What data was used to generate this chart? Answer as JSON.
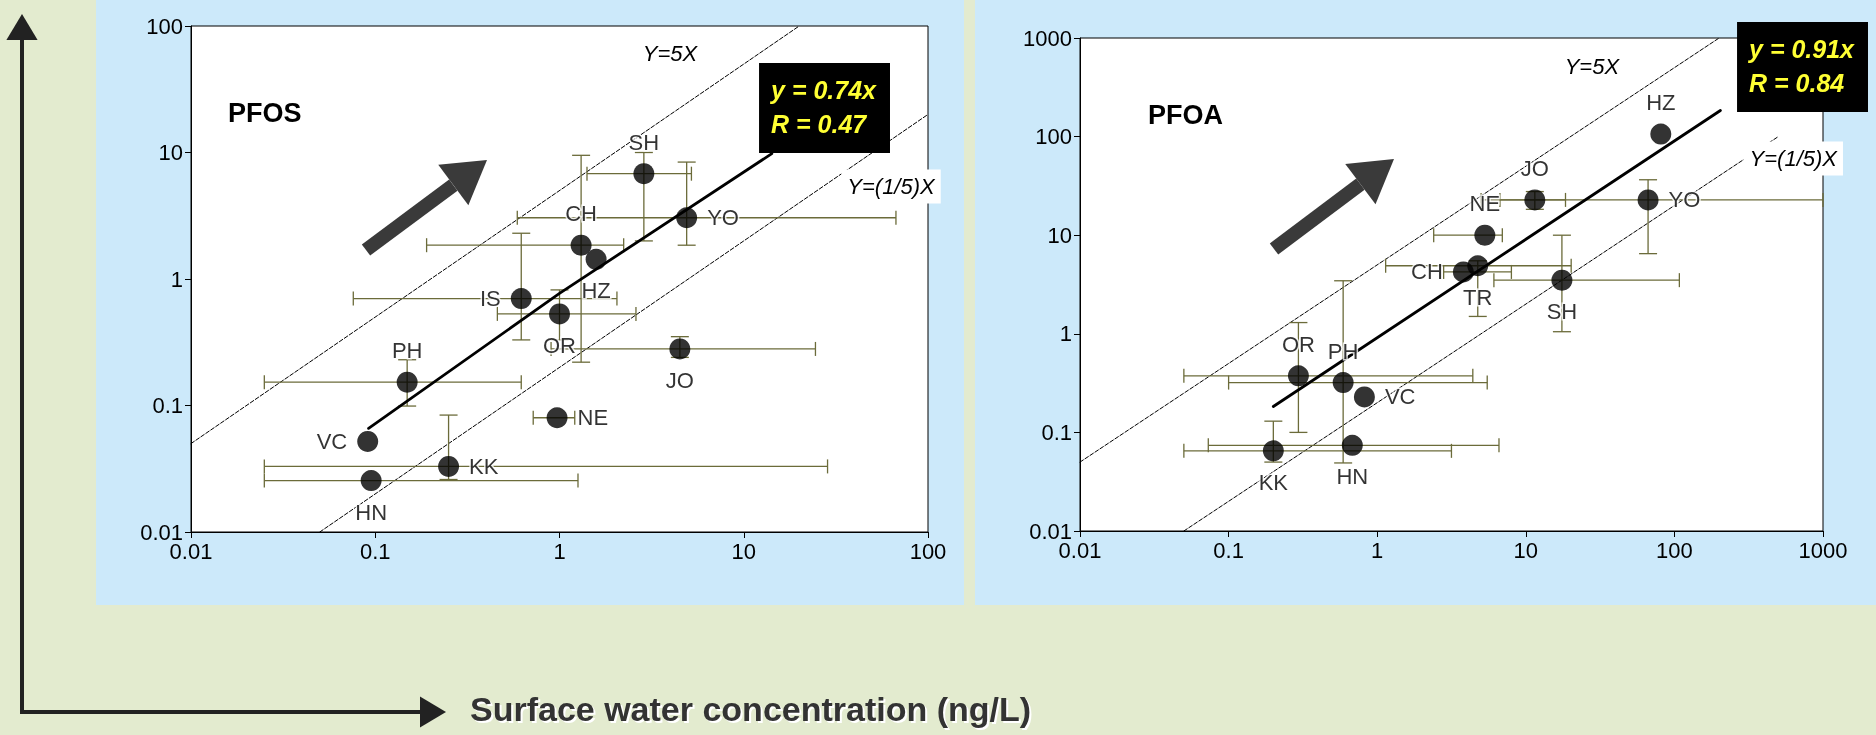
{
  "chart_data": [
    {
      "type": "scatter",
      "title": "PFOS",
      "xlabel": "Surface water concentration (ng/L)",
      "xlim": [
        0.01,
        100
      ],
      "ylim": [
        0.01,
        100
      ],
      "xticks": [
        0.01,
        0.1,
        1,
        10,
        100
      ],
      "yticks": [
        0.01,
        0.1,
        1,
        10,
        100
      ],
      "log": "xy",
      "series": [
        {
          "type": "scatter",
          "marker": "circle",
          "color": "#000000",
          "x": [
            2.87,
            4.9,
            1.31,
            1.58,
            0.62,
            1.0,
            4.5,
            0.149,
            0.97,
            0.25,
            0.091,
            0.095
          ],
          "values": [
            6.8,
            3.05,
            1.85,
            1.43,
            0.7,
            0.53,
            0.28,
            0.153,
            0.08,
            0.033,
            0.052,
            0.0255
          ],
          "errors": [
            [
              2.0,
              10
            ],
            [
              1.85,
              8.4
            ],
            [
              0.22,
              9.5
            ],
            null,
            [
              0.33,
              2.3
            ],
            [
              0.33,
              0.82
            ],
            [
              0.24,
              0.35
            ],
            [
              0.099,
              0.23
            ],
            null,
            [
              0.026,
              0.084
            ],
            null,
            null
          ],
          "xerrors": [
            [
              1.41,
              5.2
            ],
            [
              0.59,
              67
            ],
            [
              0.19,
              2.23
            ],
            null,
            [
              0.076,
              2.05
            ],
            [
              0.46,
              2.6
            ],
            [
              0.9,
              24.5
            ],
            [
              0.025,
              0.62
            ],
            [
              0.72,
              1.21
            ],
            [
              0.025,
              28.5
            ],
            null,
            [
              0.025,
              1.26
            ]
          ],
          "value_labels": [
            "SH",
            "YO",
            "CH",
            "HZ",
            "IS",
            "OR",
            "JO",
            "PH",
            "NE",
            "KK",
            "VC",
            "HN"
          ]
        },
        {
          "type": "line",
          "color": "#000000",
          "x": [
            0.092,
            1.0,
            14.2
          ],
          "values": [
            0.066,
            0.77,
            9.8
          ]
        },
        {
          "type": "line",
          "name": "Y=5X",
          "color": "#000000",
          "line_style": "dashed",
          "x": [
            0.01,
            20
          ],
          "values": [
            0.05,
            100
          ]
        },
        {
          "type": "line",
          "name": "Y=(1/5)X",
          "color": "#000000",
          "line_style": "dashed",
          "x": [
            0.05,
            100
          ],
          "values": [
            0.01,
            20
          ]
        }
      ],
      "annotations": [
        "y = 0.74x\nR = 0.47"
      ]
    },
    {
      "type": "scatter",
      "title": "PFOA",
      "xlim": [
        0.01,
        1000
      ],
      "ylim": [
        0.01,
        1000
      ],
      "xticks": [
        0.01,
        0.1,
        1,
        10,
        100,
        1000
      ],
      "yticks": [
        0.01,
        0.1,
        1,
        10,
        100,
        1000
      ],
      "log": "xy",
      "series": [
        {
          "type": "scatter",
          "marker": "circle",
          "color": "#000000",
          "x": [
            81,
            11.5,
            66.5,
            5.3,
            3.8,
            4.75,
            17.5,
            0.295,
            0.59,
            0.82,
            0.2,
            0.68
          ],
          "values": [
            106,
            22.8,
            22.8,
            10,
            4.24,
            4.9,
            3.5,
            0.375,
            0.32,
            0.229,
            0.065,
            0.074
          ],
          "errors": [
            null,
            [
              18.3,
              27.7
            ],
            [
              6.5,
              36.5
            ],
            null,
            null,
            [
              1.5,
              5.5
            ],
            [
              1.05,
              10
            ],
            [
              0.1,
              1.3
            ],
            [
              0.049,
              3.45
            ],
            null,
            [
              0.05,
              0.13
            ],
            null
          ],
          "xerrors": [
            null,
            [
              5.0,
              18.5
            ],
            [
              6.7,
              1000
            ],
            [
              2.4,
              6.95
            ],
            [
              2.8,
              8.0
            ],
            [
              1.14,
              20.2
            ],
            [
              6.1,
              108
            ],
            [
              0.05,
              4.4
            ],
            [
              0.1,
              5.5
            ],
            null,
            [
              0.05,
              3.16
            ],
            [
              0.073,
              6.6
            ]
          ],
          "value_labels": [
            "HZ",
            "JO",
            "YO",
            "NE",
            "CH",
            "TR",
            "SH",
            "OR",
            "PH",
            "VC",
            "KK",
            "HN"
          ]
        },
        {
          "type": "line",
          "color": "#000000",
          "x": [
            0.2,
            204
          ],
          "values": [
            0.183,
            184
          ]
        },
        {
          "type": "line",
          "name": "Y=5X",
          "color": "#000000",
          "line_style": "dashed",
          "x": [
            0.01,
            200
          ],
          "values": [
            0.05,
            1000
          ]
        },
        {
          "type": "line",
          "name": "Y=(1/5)X",
          "color": "#000000",
          "line_style": "dashed",
          "x": [
            0.05,
            500
          ],
          "values": [
            0.01,
            100
          ]
        }
      ],
      "annotations": [
        "y = 0.91x\nR = 0.84"
      ]
    }
  ]
}
